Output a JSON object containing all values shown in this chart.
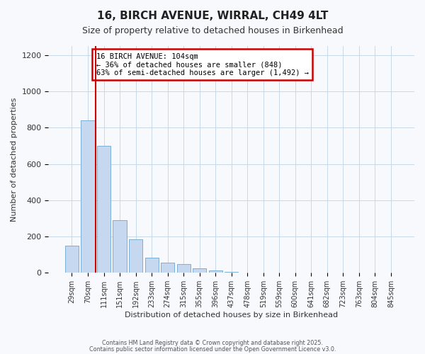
{
  "title": "16, BIRCH AVENUE, WIRRAL, CH49 4LT",
  "subtitle": "Size of property relative to detached houses in Birkenhead",
  "xlabel": "Distribution of detached houses by size in Birkenhead",
  "ylabel": "Number of detached properties",
  "categories": [
    "29sqm",
    "70sqm",
    "111sqm",
    "151sqm",
    "192sqm",
    "233sqm",
    "274sqm",
    "315sqm",
    "355sqm",
    "396sqm",
    "437sqm",
    "478sqm",
    "519sqm",
    "559sqm",
    "600sqm",
    "641sqm",
    "682sqm",
    "723sqm",
    "763sqm",
    "804sqm",
    "845sqm"
  ],
  "values": [
    150,
    840,
    700,
    290,
    185,
    83,
    57,
    47,
    25,
    12,
    5,
    0,
    0,
    0,
    0,
    2,
    0,
    0,
    0,
    0,
    0
  ],
  "bar_color": "#c5d8f0",
  "bar_edge_color": "#7bafd4",
  "vline_x": 1.5,
  "vline_color": "#cc0000",
  "ylim": [
    0,
    1250
  ],
  "yticks": [
    0,
    200,
    400,
    600,
    800,
    1000,
    1200
  ],
  "annotation_title": "16 BIRCH AVENUE: 104sqm",
  "annotation_line1": "← 36% of detached houses are smaller (848)",
  "annotation_line2": "63% of semi-detached houses are larger (1,492) →",
  "annotation_box_color": "#cc0000",
  "footnote1": "Contains HM Land Registry data © Crown copyright and database right 2025.",
  "footnote2": "Contains public sector information licensed under the Open Government Licence v3.0.",
  "bg_color": "#f7f9fc",
  "grid_color": "#c8d8e8"
}
